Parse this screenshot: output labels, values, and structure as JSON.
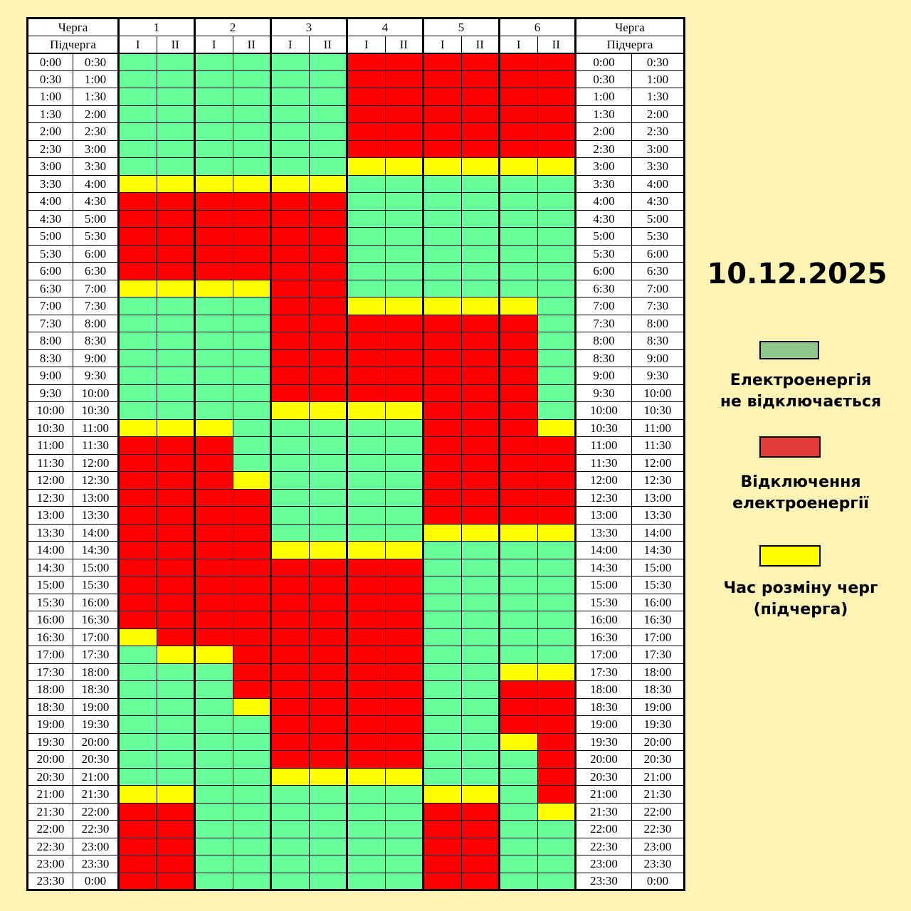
{
  "date": "10.12.2025",
  "header": {
    "queue_label": "Черга",
    "subqueue_label": "Підчерга",
    "queues": [
      "1",
      "2",
      "3",
      "4",
      "5",
      "6"
    ],
    "subqueues": [
      "I",
      "II"
    ]
  },
  "colors": {
    "G": "#66ff99",
    "R": "#ff0000",
    "Y": "#ffff00"
  },
  "legend": [
    {
      "key": "G",
      "color": "#8fc98a",
      "text": "Електроенергія\nне відключається"
    },
    {
      "key": "R",
      "color": "#e23b3b",
      "text": "Відключення\nелектроенергії"
    },
    {
      "key": "Y",
      "color": "#ffff00",
      "text": "Час розміну черг\n(підчерга)"
    }
  ],
  "rows": [
    {
      "from": "0:00",
      "to": "0:30",
      "cells": "GGGGGGRRRRRR"
    },
    {
      "from": "0:30",
      "to": "1:00",
      "cells": "GGGGGGRRRRRR"
    },
    {
      "from": "1:00",
      "to": "1:30",
      "cells": "GGGGGGRRRRRR"
    },
    {
      "from": "1:30",
      "to": "2:00",
      "cells": "GGGGGGRRRRRR"
    },
    {
      "from": "2:00",
      "to": "2:30",
      "cells": "GGGGGGRRRRRR"
    },
    {
      "from": "2:30",
      "to": "3:00",
      "cells": "GGGGGGRRRRRR"
    },
    {
      "from": "3:00",
      "to": "3:30",
      "cells": "GGGGGGYYYYYY"
    },
    {
      "from": "3:30",
      "to": "4:00",
      "cells": "YYYYYYGGGGGG"
    },
    {
      "from": "4:00",
      "to": "4:30",
      "cells": "RRRRRRGGGGGG"
    },
    {
      "from": "4:30",
      "to": "5:00",
      "cells": "RRRRRRGGGGGG"
    },
    {
      "from": "5:00",
      "to": "5:30",
      "cells": "RRRRRRGGGGGG"
    },
    {
      "from": "5:30",
      "to": "6:00",
      "cells": "RRRRRRGGGGGG"
    },
    {
      "from": "6:00",
      "to": "6:30",
      "cells": "RRRRRRGGGGGG"
    },
    {
      "from": "6:30",
      "to": "7:00",
      "cells": "YYYYRRGGGGGG"
    },
    {
      "from": "7:00",
      "to": "7:30",
      "cells": "GGGGRRYYYYYG"
    },
    {
      "from": "7:30",
      "to": "8:00",
      "cells": "GGGGRRRRRRRG"
    },
    {
      "from": "8:00",
      "to": "8:30",
      "cells": "GGGGRRRRRRRG"
    },
    {
      "from": "8:30",
      "to": "9:00",
      "cells": "GGGGRRRRRRRG"
    },
    {
      "from": "9:00",
      "to": "9:30",
      "cells": "GGGGRRRRRRRG"
    },
    {
      "from": "9:30",
      "to": "10:00",
      "cells": "GGGGRRRRRRRG"
    },
    {
      "from": "10:00",
      "to": "10:30",
      "cells": "GGGGYYYYRRRG"
    },
    {
      "from": "10:30",
      "to": "11:00",
      "cells": "YYYGGGGGRRRY"
    },
    {
      "from": "11:00",
      "to": "11:30",
      "cells": "RRRGGGGGRRRR"
    },
    {
      "from": "11:30",
      "to": "12:00",
      "cells": "RRRGGGGGRRRR"
    },
    {
      "from": "12:00",
      "to": "12:30",
      "cells": "RRRYGGGGRRRR"
    },
    {
      "from": "12:30",
      "to": "13:00",
      "cells": "RRRRGGGGRRRR"
    },
    {
      "from": "13:00",
      "to": "13:30",
      "cells": "RRRRGGGGRRRR"
    },
    {
      "from": "13:30",
      "to": "14:00",
      "cells": "RRRRGGGGYYYY"
    },
    {
      "from": "14:00",
      "to": "14:30",
      "cells": "RRRRYYYYGGGG"
    },
    {
      "from": "14:30",
      "to": "15:00",
      "cells": "RRRRRRRRGGGG"
    },
    {
      "from": "15:00",
      "to": "15:30",
      "cells": "RRRRRRRRGGGG"
    },
    {
      "from": "15:30",
      "to": "16:00",
      "cells": "RRRRRRRRGGGG"
    },
    {
      "from": "16:00",
      "to": "16:30",
      "cells": "RRRRRRRRGGGG"
    },
    {
      "from": "16:30",
      "to": "17:00",
      "cells": "YRRRRRRRGGGG"
    },
    {
      "from": "17:00",
      "to": "17:30",
      "cells": "GYYRRRRRGGGG"
    },
    {
      "from": "17:30",
      "to": "18:00",
      "cells": "GGGRRRRRGGYY"
    },
    {
      "from": "18:00",
      "to": "18:30",
      "cells": "GGGRRRRRGGRR"
    },
    {
      "from": "18:30",
      "to": "19:00",
      "cells": "GGGYRRRRGGRR"
    },
    {
      "from": "19:00",
      "to": "19:30",
      "cells": "GGGGRRRRGGRR"
    },
    {
      "from": "19:30",
      "to": "20:00",
      "cells": "GGGGRRRRGGYR"
    },
    {
      "from": "20:00",
      "to": "20:30",
      "cells": "GGGGRRRRGGGR"
    },
    {
      "from": "20:30",
      "to": "21:00",
      "cells": "GGGGYYYYGGGR"
    },
    {
      "from": "21:00",
      "to": "21:30",
      "cells": "YYGGGGGGYYGR"
    },
    {
      "from": "21:30",
      "to": "22:00",
      "cells": "RRGGGGGGRRGY"
    },
    {
      "from": "22:00",
      "to": "22:30",
      "cells": "RRGGGGGGRRGG"
    },
    {
      "from": "22:30",
      "to": "23:00",
      "cells": "RRGGGGGGRRGG"
    },
    {
      "from": "23:00",
      "to": "23:30",
      "cells": "RRGGGGGGRRGG"
    },
    {
      "from": "23:30",
      "to": "0:00",
      "cells": "RRGGGGGGRRGG"
    }
  ]
}
